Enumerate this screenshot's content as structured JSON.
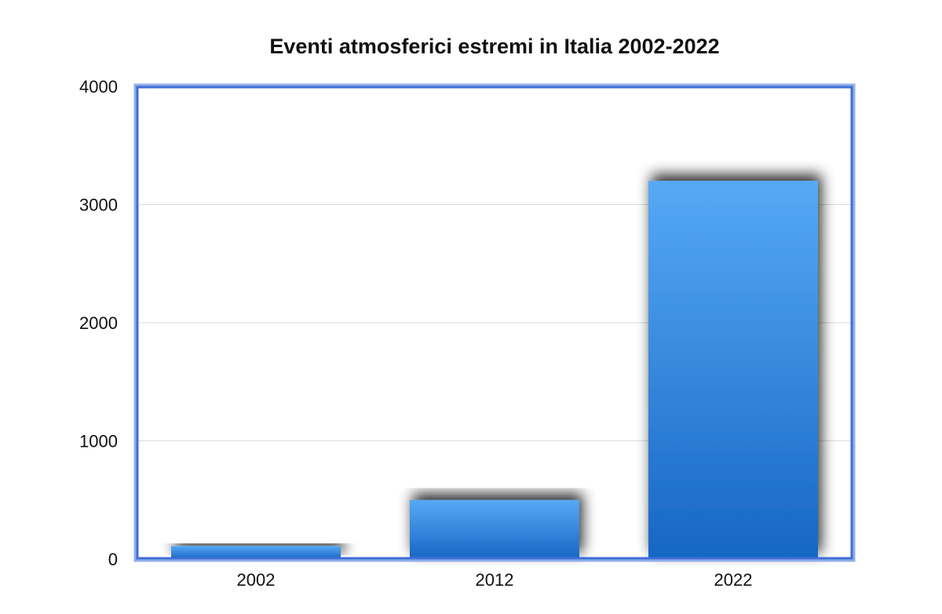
{
  "chart_data": {
    "type": "bar",
    "title": "Eventi atmosferici estremi in Italia 2002-2022",
    "xlabel": "",
    "ylabel": "",
    "categories": [
      "2002",
      "2012",
      "2022"
    ],
    "values": [
      110,
      500,
      3200
    ],
    "ylim": [
      0,
      4000
    ],
    "yticks": [
      0,
      1000,
      2000,
      3000,
      4000
    ],
    "grid": true,
    "legend": "none",
    "colors": {
      "bar_top": "#56a9f5",
      "bar_bottom": "#1766c4",
      "frame": "#3f6fd6",
      "frame_outer": "#8faee8",
      "grid": "#d9d9d9"
    }
  }
}
